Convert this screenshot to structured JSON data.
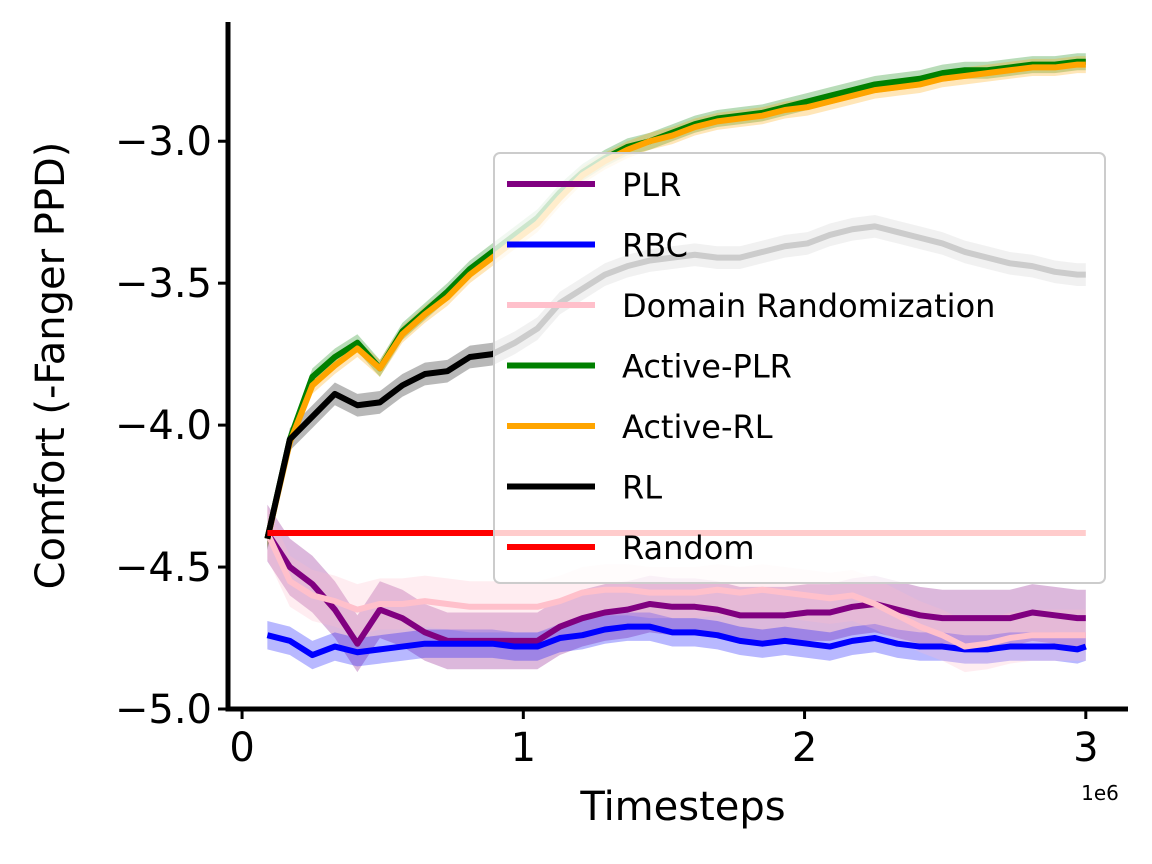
{
  "chart_data": {
    "type": "line",
    "title": "",
    "xlabel": "Timesteps",
    "ylabel": "Comfort (-Fanger PPD)",
    "x_offset_label": "1e6",
    "xlim": [
      -0.05,
      3.15
    ],
    "ylim": [
      -5.0,
      -2.58
    ],
    "xticks": [
      0,
      1,
      2,
      3
    ],
    "xtick_labels": [
      "0",
      "1",
      "2",
      "3"
    ],
    "yticks": [
      -5.0,
      -4.5,
      -4.0,
      -3.5,
      -3.0
    ],
    "ytick_labels": [
      "−5.0",
      "−4.5",
      "−4.0",
      "−3.5",
      "−3.0"
    ],
    "grid": false,
    "legend_position": "center-right",
    "x": [
      0.09,
      0.17,
      0.25,
      0.33,
      0.41,
      0.49,
      0.57,
      0.65,
      0.73,
      0.81,
      0.89,
      0.97,
      1.05,
      1.13,
      1.21,
      1.29,
      1.37,
      1.45,
      1.53,
      1.61,
      1.69,
      1.77,
      1.85,
      1.93,
      2.01,
      2.09,
      2.17,
      2.25,
      2.33,
      2.41,
      2.49,
      2.57,
      2.65,
      2.73,
      2.81,
      2.89,
      2.97,
      3.0
    ],
    "series": [
      {
        "name": "PLR",
        "color": "#800080",
        "values": [
          -4.38,
          -4.5,
          -4.56,
          -4.65,
          -4.77,
          -4.65,
          -4.68,
          -4.73,
          -4.76,
          -4.76,
          -4.76,
          -4.76,
          -4.76,
          -4.71,
          -4.68,
          -4.66,
          -4.65,
          -4.63,
          -4.64,
          -4.64,
          -4.65,
          -4.67,
          -4.67,
          -4.67,
          -4.66,
          -4.66,
          -4.64,
          -4.63,
          -4.65,
          -4.67,
          -4.68,
          -4.68,
          -4.68,
          -4.68,
          -4.66,
          -4.67,
          -4.68,
          -4.68
        ],
        "band": 0.1
      },
      {
        "name": "RBC",
        "color": "#0000ff",
        "values": [
          -4.74,
          -4.76,
          -4.81,
          -4.78,
          -4.8,
          -4.79,
          -4.78,
          -4.77,
          -4.77,
          -4.77,
          -4.77,
          -4.78,
          -4.78,
          -4.75,
          -4.74,
          -4.72,
          -4.71,
          -4.71,
          -4.73,
          -4.73,
          -4.74,
          -4.76,
          -4.77,
          -4.76,
          -4.77,
          -4.78,
          -4.76,
          -4.75,
          -4.77,
          -4.78,
          -4.78,
          -4.79,
          -4.79,
          -4.78,
          -4.78,
          -4.78,
          -4.79,
          -4.78
        ],
        "band": 0.05
      },
      {
        "name": "Domain Randomization",
        "color": "#ffc0cb",
        "values": [
          -4.38,
          -4.55,
          -4.6,
          -4.62,
          -4.65,
          -4.63,
          -4.63,
          -4.62,
          -4.63,
          -4.64,
          -4.64,
          -4.64,
          -4.64,
          -4.62,
          -4.59,
          -4.58,
          -4.58,
          -4.59,
          -4.59,
          -4.59,
          -4.58,
          -4.59,
          -4.58,
          -4.59,
          -4.6,
          -4.61,
          -4.6,
          -4.63,
          -4.67,
          -4.71,
          -4.74,
          -4.78,
          -4.77,
          -4.75,
          -4.74,
          -4.74,
          -4.74,
          -4.74
        ],
        "band": 0.09
      },
      {
        "name": "Active-PLR",
        "color": "#008000",
        "values": [
          -4.4,
          -4.05,
          -3.83,
          -3.76,
          -3.71,
          -3.8,
          -3.67,
          -3.6,
          -3.53,
          -3.45,
          -3.39,
          -3.33,
          -3.27,
          -3.18,
          -3.11,
          -3.06,
          -3.02,
          -3.0,
          -2.97,
          -2.94,
          -2.92,
          -2.91,
          -2.9,
          -2.88,
          -2.86,
          -2.84,
          -2.82,
          -2.8,
          -2.79,
          -2.78,
          -2.76,
          -2.75,
          -2.75,
          -2.74,
          -2.73,
          -2.73,
          -2.72,
          -2.72
        ],
        "band": 0.03
      },
      {
        "name": "Active-RL",
        "color": "#ffa500",
        "values": [
          -4.4,
          -4.06,
          -3.86,
          -3.79,
          -3.73,
          -3.8,
          -3.68,
          -3.61,
          -3.55,
          -3.47,
          -3.41,
          -3.35,
          -3.29,
          -3.2,
          -3.12,
          -3.07,
          -3.03,
          -3.0,
          -2.98,
          -2.95,
          -2.93,
          -2.92,
          -2.91,
          -2.89,
          -2.88,
          -2.86,
          -2.84,
          -2.82,
          -2.81,
          -2.8,
          -2.78,
          -2.77,
          -2.76,
          -2.75,
          -2.74,
          -2.74,
          -2.73,
          -2.73
        ],
        "band": 0.03
      },
      {
        "name": "RL",
        "color": "#000000",
        "values": [
          -4.4,
          -4.05,
          -3.97,
          -3.89,
          -3.93,
          -3.92,
          -3.86,
          -3.82,
          -3.81,
          -3.76,
          -3.75,
          -3.71,
          -3.66,
          -3.57,
          -3.52,
          -3.47,
          -3.44,
          -3.42,
          -3.41,
          -3.4,
          -3.41,
          -3.41,
          -3.39,
          -3.37,
          -3.36,
          -3.33,
          -3.31,
          -3.3,
          -3.32,
          -3.34,
          -3.36,
          -3.39,
          -3.41,
          -3.43,
          -3.44,
          -3.46,
          -3.47,
          -3.47
        ],
        "band": 0.04
      },
      {
        "name": "Random",
        "color": "#ff0000",
        "values": [
          -4.38,
          -4.38,
          -4.38,
          -4.38,
          -4.38,
          -4.38,
          -4.38,
          -4.38,
          -4.38,
          -4.38,
          -4.38,
          -4.38,
          -4.38,
          -4.38,
          -4.38,
          -4.38,
          -4.38,
          -4.38,
          -4.38,
          -4.38,
          -4.38,
          -4.38,
          -4.38,
          -4.38,
          -4.38,
          -4.38,
          -4.38,
          -4.38,
          -4.38,
          -4.38,
          -4.38,
          -4.38,
          -4.38,
          -4.38,
          -4.38,
          -4.38,
          -4.38,
          -4.38
        ],
        "band": 0
      }
    ]
  }
}
